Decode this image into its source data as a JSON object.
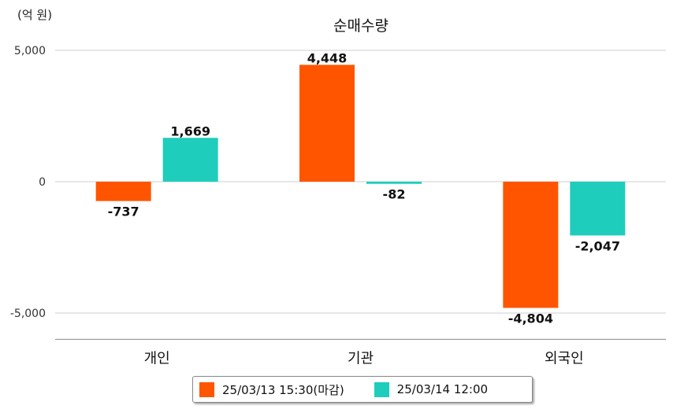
{
  "unit_label": "(억 원)",
  "chart_data": {
    "type": "bar",
    "title": "순매수량",
    "xlabel": "",
    "ylabel": "",
    "ylim": [
      -6000,
      5000
    ],
    "yticks": [
      5000,
      0,
      -5000
    ],
    "ytick_labels": [
      "5,000",
      "0",
      "-5,000"
    ],
    "categories": [
      "개인",
      "기관",
      "외국인"
    ],
    "series": [
      {
        "name": "25/03/13 15:30(마감)",
        "color": "#ff5500",
        "values": [
          -737,
          4448,
          -4804
        ],
        "labels": [
          "-737",
          "4,448",
          "-4,804"
        ]
      },
      {
        "name": "25/03/14 12:00",
        "color": "#1ecdbc",
        "values": [
          1669,
          -82,
          -2047
        ],
        "labels": [
          "1,669",
          "-82",
          "-2,047"
        ]
      }
    ],
    "grid": true,
    "legend": "bottom"
  }
}
